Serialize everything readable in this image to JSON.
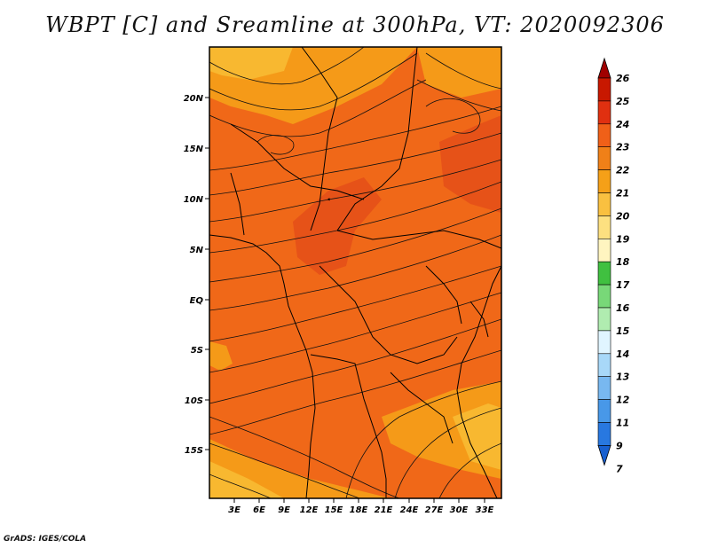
{
  "title": "WBPT [C] and Sreamline at 300hPa, VT: 2020092306",
  "footer": "GrADS: IGES/COLA",
  "map": {
    "lat_labels": [
      "20N",
      "15N",
      "10N",
      "5N",
      "EQ",
      "5S",
      "10S",
      "15S"
    ],
    "lon_labels": [
      "3E",
      "6E",
      "9E",
      "12E",
      "15E",
      "18E",
      "21E",
      "24E",
      "27E",
      "30E",
      "33E"
    ],
    "colors": {
      "base": "#f06818",
      "warm": "#e65218",
      "cool": "#f59a18",
      "cooler": "#f8b830"
    }
  },
  "colorbar": {
    "labels": [
      "26",
      "25",
      "24",
      "23",
      "22",
      "21",
      "20",
      "19",
      "18",
      "17",
      "16",
      "15",
      "14",
      "13",
      "12",
      "11",
      "9",
      "7"
    ],
    "colors": [
      "#a00000",
      "#c81800",
      "#e03010",
      "#f06018",
      "#f08018",
      "#f5a018",
      "#f9c040",
      "#fde080",
      "#fff5c0",
      "#40c040",
      "#78d878",
      "#b0ecb0",
      "#e0f5ff",
      "#a8d8f8",
      "#78b8f0",
      "#4898e8",
      "#2878e0",
      "#1860d0"
    ]
  }
}
